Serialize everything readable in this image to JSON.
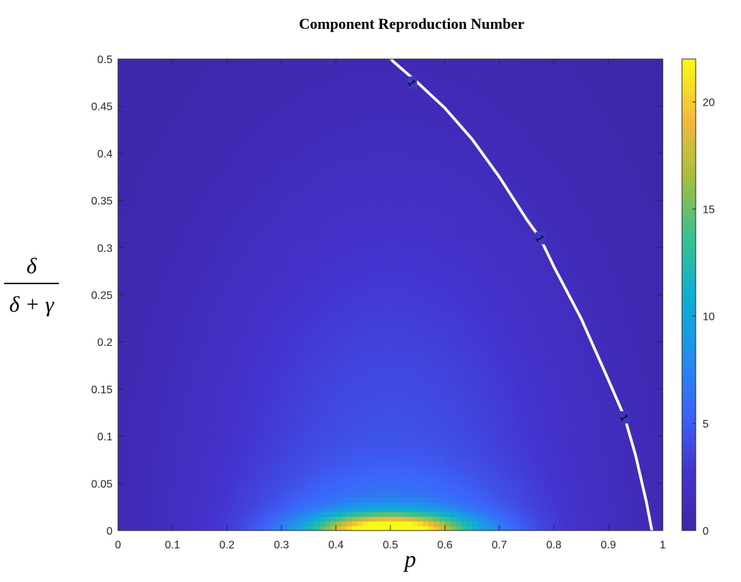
{
  "chart_data": {
    "type": "heatmap",
    "title": "Component Reproduction Number",
    "xlabel": "p",
    "ylabel": {
      "numerator": "δ",
      "denominator": "δ + γ"
    },
    "xlim": [
      0,
      1
    ],
    "ylim": [
      0,
      0.5
    ],
    "x_ticks": [
      "0",
      "0.1",
      "0.2",
      "0.3",
      "0.4",
      "0.5",
      "0.6",
      "0.7",
      "0.8",
      "0.9",
      "1"
    ],
    "y_ticks": [
      "0",
      "0.05",
      "0.1",
      "0.15",
      "0.2",
      "0.25",
      "0.3",
      "0.35",
      "0.4",
      "0.45",
      "0.5"
    ],
    "colorbar": {
      "colormap": "parula",
      "range": [
        0,
        22
      ],
      "ticks": [
        "0",
        "5",
        "10",
        "15",
        "20"
      ],
      "tick_values": [
        0,
        5,
        10,
        15,
        20
      ]
    },
    "peak": {
      "p": 0.5,
      "ratio": 0,
      "value": 22
    },
    "contour": {
      "level": 1,
      "label": "1",
      "color": "#ffffff",
      "points": [
        {
          "p": 0.5,
          "ratio": 0.5
        },
        {
          "p": 0.55,
          "ratio": 0.475
        },
        {
          "p": 0.6,
          "ratio": 0.448
        },
        {
          "p": 0.65,
          "ratio": 0.415
        },
        {
          "p": 0.7,
          "ratio": 0.375
        },
        {
          "p": 0.75,
          "ratio": 0.33
        },
        {
          "p": 0.775,
          "ratio": 0.31
        },
        {
          "p": 0.8,
          "ratio": 0.28
        },
        {
          "p": 0.85,
          "ratio": 0.225
        },
        {
          "p": 0.9,
          "ratio": 0.16
        },
        {
          "p": 0.93,
          "ratio": 0.12
        },
        {
          "p": 0.95,
          "ratio": 0.08
        },
        {
          "p": 0.97,
          "ratio": 0.03
        },
        {
          "p": 0.98,
          "ratio": 0
        }
      ],
      "label_positions": [
        {
          "p": 0.54,
          "ratio": 0.475
        },
        {
          "p": 0.775,
          "ratio": 0.31
        },
        {
          "p": 0.93,
          "ratio": 0.12
        }
      ]
    }
  }
}
